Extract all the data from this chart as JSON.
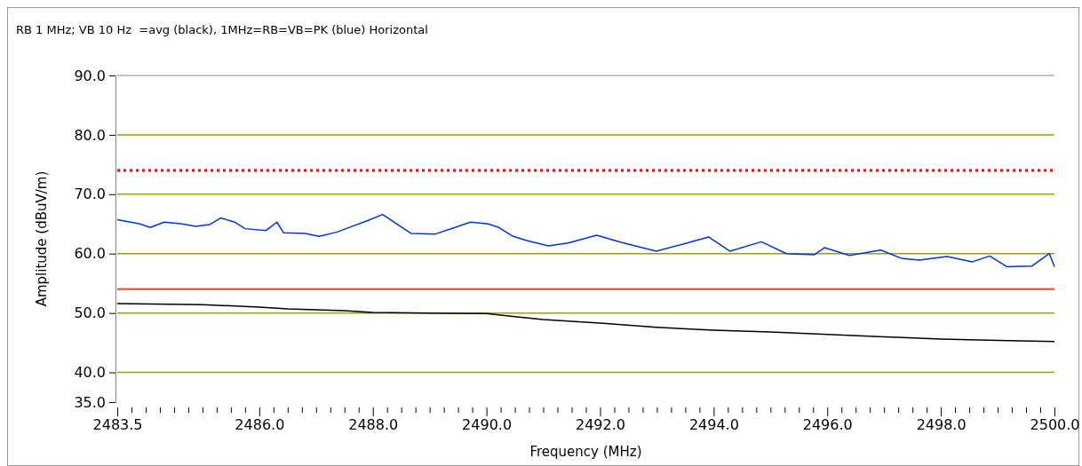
{
  "chart_data": {
    "type": "line",
    "title": "RB 1 MHz; VB 10 Hz  =avg (black), 1MHz=RB=VB=PK (blue) Horizontal",
    "xlabel": "Frequency (MHz)",
    "ylabel": "Amplitude (dBuV/m)",
    "xlim": [
      2483.5,
      2500
    ],
    "xticks": [
      {
        "value": 2483.5,
        "label": "2483.5"
      },
      {
        "value": 2483.75,
        "label": null
      },
      {
        "value": 2484,
        "label": null
      },
      {
        "value": 2484.25,
        "label": null
      },
      {
        "value": 2484.5,
        "label": null
      },
      {
        "value": 2484.75,
        "label": null
      },
      {
        "value": 2485,
        "label": null
      },
      {
        "value": 2485.25,
        "label": null
      },
      {
        "value": 2485.5,
        "label": null
      },
      {
        "value": 2485.75,
        "label": null
      },
      {
        "value": 2486,
        "label": "2486.0"
      },
      {
        "value": 2486.25,
        "label": null
      },
      {
        "value": 2486.5,
        "label": null
      },
      {
        "value": 2486.75,
        "label": null
      },
      {
        "value": 2487,
        "label": null
      },
      {
        "value": 2487.25,
        "label": null
      },
      {
        "value": 2487.5,
        "label": null
      },
      {
        "value": 2487.75,
        "label": null
      },
      {
        "value": 2488,
        "label": "2488.0"
      },
      {
        "value": 2488.25,
        "label": null
      },
      {
        "value": 2488.5,
        "label": null
      },
      {
        "value": 2488.75,
        "label": null
      },
      {
        "value": 2489,
        "label": null
      },
      {
        "value": 2489.25,
        "label": null
      },
      {
        "value": 2489.5,
        "label": null
      },
      {
        "value": 2489.75,
        "label": null
      },
      {
        "value": 2490,
        "label": "2490.0"
      },
      {
        "value": 2490.25,
        "label": null
      },
      {
        "value": 2490.5,
        "label": null
      },
      {
        "value": 2490.75,
        "label": null
      },
      {
        "value": 2491,
        "label": null
      },
      {
        "value": 2491.25,
        "label": null
      },
      {
        "value": 2491.5,
        "label": null
      },
      {
        "value": 2491.75,
        "label": null
      },
      {
        "value": 2492,
        "label": "2492.0"
      },
      {
        "value": 2492.25,
        "label": null
      },
      {
        "value": 2492.5,
        "label": null
      },
      {
        "value": 2492.75,
        "label": null
      },
      {
        "value": 2493,
        "label": null
      },
      {
        "value": 2493.25,
        "label": null
      },
      {
        "value": 2493.5,
        "label": null
      },
      {
        "value": 2493.75,
        "label": null
      },
      {
        "value": 2494,
        "label": "2494.0"
      },
      {
        "value": 2494.25,
        "label": null
      },
      {
        "value": 2494.5,
        "label": null
      },
      {
        "value": 2494.75,
        "label": null
      },
      {
        "value": 2495,
        "label": null
      },
      {
        "value": 2495.25,
        "label": null
      },
      {
        "value": 2495.5,
        "label": null
      },
      {
        "value": 2495.75,
        "label": null
      },
      {
        "value": 2496,
        "label": "2496.0"
      },
      {
        "value": 2496.25,
        "label": null
      },
      {
        "value": 2496.5,
        "label": null
      },
      {
        "value": 2496.75,
        "label": null
      },
      {
        "value": 2497,
        "label": null
      },
      {
        "value": 2497.25,
        "label": null
      },
      {
        "value": 2497.5,
        "label": null
      },
      {
        "value": 2497.75,
        "label": null
      },
      {
        "value": 2498,
        "label": "2498.0"
      },
      {
        "value": 2498.25,
        "label": null
      },
      {
        "value": 2498.5,
        "label": null
      },
      {
        "value": 2498.75,
        "label": null
      },
      {
        "value": 2499,
        "label": null
      },
      {
        "value": 2499.25,
        "label": null
      },
      {
        "value": 2499.5,
        "label": null
      },
      {
        "value": 2499.75,
        "label": null
      },
      {
        "value": 2500,
        "label": "2500.0"
      }
    ],
    "ylim": [
      35,
      90
    ],
    "yticks": [
      {
        "value": 35,
        "label": "35.0"
      },
      {
        "value": 40,
        "label": "40.0"
      },
      {
        "value": 50,
        "label": "50.0"
      },
      {
        "value": 60,
        "label": "60.0"
      },
      {
        "value": 70,
        "label": "70.0"
      },
      {
        "value": 80,
        "label": "80.0"
      },
      {
        "value": 90,
        "label": "90.0"
      }
    ],
    "grid": "y",
    "ref_lines": [
      {
        "axis": "y",
        "value": 74,
        "color": "#ff0000",
        "line_style": "dotted"
      },
      {
        "axis": "y",
        "value": 54,
        "color": "#ff4422",
        "line_style": "solid"
      }
    ],
    "series": [
      {
        "color": "#0033ee",
        "x": [
          2483.5,
          2483.9,
          2484.08,
          2484.33,
          2484.64,
          2484.88,
          2485.13,
          2485.32,
          2485.57,
          2485.75,
          2486.12,
          2486.31,
          2486.43,
          2486.81,
          2487.05,
          2487.36,
          2487.61,
          2487.92,
          2488.17,
          2488.36,
          2488.67,
          2489.1,
          2489.41,
          2489.72,
          2490.03,
          2490.22,
          2490.47,
          2490.71,
          2491.09,
          2491.44,
          2491.94,
          2492.37,
          2492.99,
          2493.42,
          2493.91,
          2494.29,
          2494.84,
          2495.28,
          2495.77,
          2495.95,
          2496.39,
          2496.94,
          2497.31,
          2497.62,
          2498.11,
          2498.55,
          2498.86,
          2499.16,
          2499.6,
          2499.91,
          2500
        ],
        "values": [
          65.7,
          65.0,
          64.4,
          65.3,
          65.0,
          64.6,
          64.9,
          66.0,
          65.3,
          64.2,
          63.9,
          65.3,
          63.5,
          63.4,
          62.9,
          63.6,
          64.5,
          65.6,
          66.6,
          65.4,
          63.4,
          63.3,
          64.3,
          65.3,
          65.0,
          64.4,
          62.9,
          62.2,
          61.3,
          61.8,
          63.1,
          61.9,
          60.4,
          61.5,
          62.8,
          60.4,
          62.0,
          60.0,
          59.8,
          61.0,
          59.7,
          60.6,
          59.2,
          58.9,
          59.5,
          58.6,
          59.6,
          57.8,
          57.9,
          60.0,
          57.8
        ]
      },
      {
        "color": "#000000",
        "x": [
          2483.5,
          2485,
          2485.5,
          2486,
          2486.5,
          2487.5,
          2488,
          2489,
          2490,
          2490.5,
          2491,
          2492,
          2493,
          2494,
          2495,
          2496,
          2497,
          2498,
          2499,
          2500
        ],
        "values": [
          51.6,
          51.4,
          51.2,
          51.0,
          50.7,
          50.4,
          50.1,
          50.0,
          49.9,
          49.4,
          48.9,
          48.3,
          47.6,
          47.1,
          46.8,
          46.4,
          46.0,
          45.6,
          45.4,
          45.2
        ]
      }
    ]
  }
}
